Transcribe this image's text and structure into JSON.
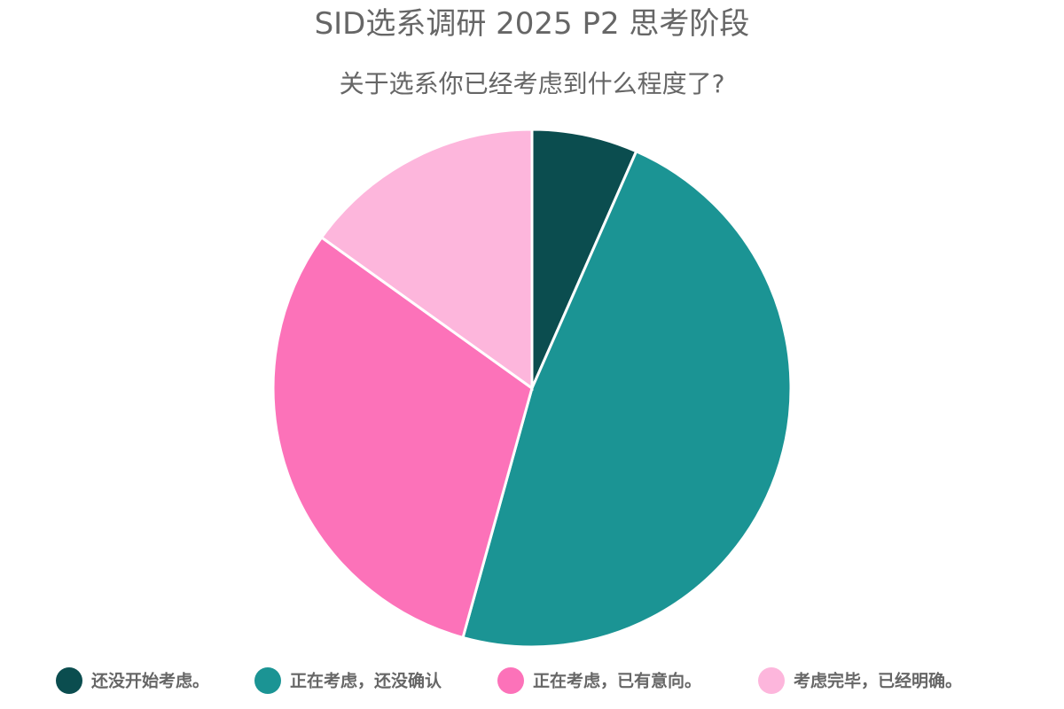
{
  "chart_data": {
    "type": "pie",
    "title": "SID选系调研 2025 P2 思考阶段",
    "subtitle": "关于选系你已经考虑到什么程度了?",
    "categories": [
      "还没开始考虑。",
      "正在考虑，还没确认",
      "正在考虑，已有意向。",
      "考虑完毕，已经明确。"
    ],
    "values": [
      6.6,
      47.7,
      30.6,
      15.1
    ],
    "colors": [
      "#0b4d4f",
      "#1b9494",
      "#fc72b9",
      "#fdb6dc"
    ],
    "legend": "bottom"
  }
}
